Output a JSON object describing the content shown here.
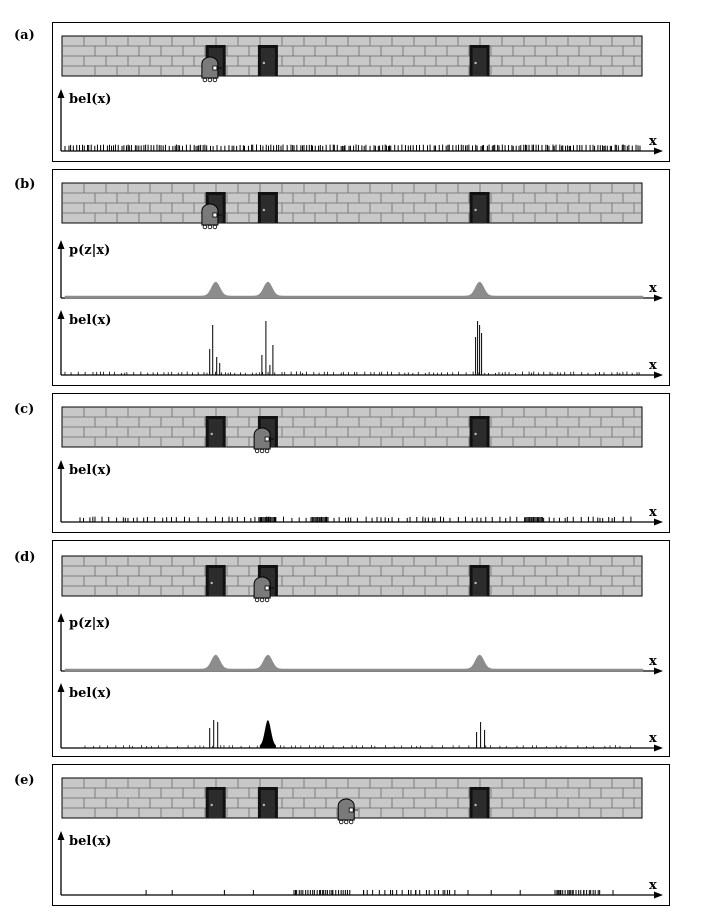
{
  "figure": {
    "axis_x_label": "x",
    "belief_label": "bel(x)",
    "sensor_label": "p(z|x)",
    "colors": {
      "wall": "#c8c8c8",
      "mortar": "#6a6a6a",
      "door": "#2c2c2c",
      "robot": "#7a7a7a",
      "sensor_curve": "#8c8c8c",
      "ink": "#000000"
    },
    "door_positions": [
      0.265,
      0.355,
      0.72
    ],
    "panels": [
      {
        "id": "a",
        "label": "(a)",
        "robot_position": 0.255,
        "has_sensor": false,
        "belief": "uniform"
      },
      {
        "id": "b",
        "label": "(b)",
        "robot_position": 0.255,
        "has_sensor": true,
        "belief": "peaks_at_doors"
      },
      {
        "id": "c",
        "label": "(c)",
        "robot_position": 0.345,
        "has_sensor": false,
        "belief": "shifted_spread"
      },
      {
        "id": "d",
        "label": "(d)",
        "robot_position": 0.345,
        "has_sensor": true,
        "belief": "concentrated_second_door"
      },
      {
        "id": "e",
        "label": "(e)",
        "robot_position": 0.49,
        "has_sensor": false,
        "belief": "moved_spread"
      }
    ]
  }
}
